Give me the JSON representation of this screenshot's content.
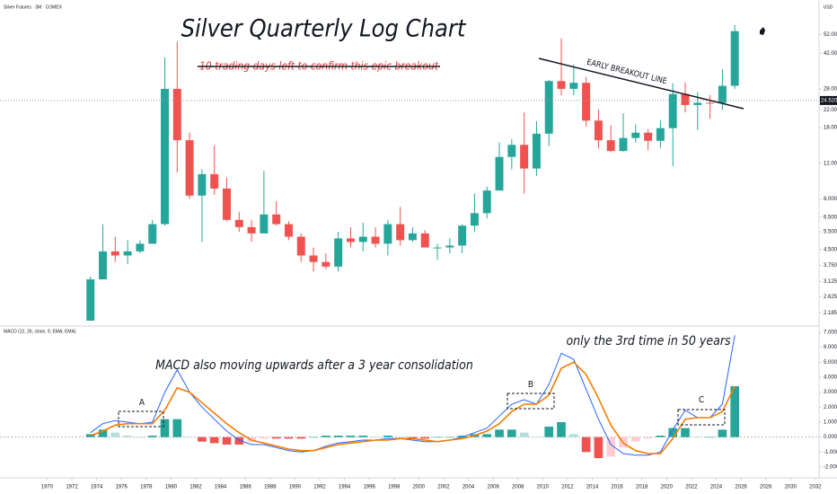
{
  "chart_data": [
    {
      "type": "candlestick",
      "title": "Silver Quarterly Log Chart",
      "subtitle": "Silver Futures · 3M · COMEX",
      "axis_label": "USD",
      "annotations": [
        "10 trading days left to confirm this epic breakout",
        "EARLY BREAKOUT LINE"
      ],
      "x": [
        1973.5,
        1974.5,
        1975.5,
        1976.5,
        1977.5,
        1978.5,
        1979.5,
        1980.5,
        1981.5,
        1982.5,
        1983.5,
        1984.5,
        1985.5,
        1986.5,
        1987.5,
        1988.5,
        1989.5,
        1990.5,
        1991.5,
        1992.5,
        1993.5,
        1994.5,
        1995.5,
        1996.5,
        1997.5,
        1998.5,
        1999.5,
        2000.5,
        2001.5,
        2002.5,
        2003.5,
        2004.5,
        2005.5,
        2006.5,
        2007.5,
        2008.5,
        2009.5,
        2010.5,
        2011.5,
        2012.5,
        2013.5,
        2014.5,
        2015.5,
        2016.5,
        2017.5,
        2018.5,
        2019.5,
        2020.5,
        2021.5,
        2022.5,
        2023.5,
        2024.5,
        2025.5
      ],
      "open": [
        2.0,
        3.2,
        4.4,
        4.2,
        4.4,
        4.8,
        6.0,
        28,
        15.6,
        8.3,
        10.6,
        9.0,
        6.3,
        5.8,
        5.4,
        6.7,
        6.0,
        5.2,
        4.2,
        3.9,
        3.7,
        5.1,
        4.9,
        5.2,
        4.8,
        6.0,
        5.0,
        5.4,
        4.6,
        4.6,
        4.7,
        5.9,
        6.8,
        8.8,
        12.9,
        14.8,
        11.3,
        16.8,
        30.6,
        28,
        30,
        19.5,
        15.6,
        13.8,
        16,
        17,
        15.5,
        17.9,
        26.4,
        23.3,
        23.9,
        23.8,
        29
      ],
      "high": [
        3.3,
        6.0,
        5.2,
        5.0,
        5.0,
        6.3,
        40,
        48,
        17,
        11.2,
        14.7,
        10.2,
        6.9,
        6.3,
        11.0,
        7.8,
        6.2,
        5.4,
        4.6,
        4.3,
        5.5,
        5.8,
        6.1,
        5.8,
        6.3,
        7.3,
        5.8,
        5.6,
        4.8,
        5.1,
        6.0,
        8.5,
        9.2,
        15.2,
        15.8,
        21.4,
        19.4,
        31,
        49.8,
        37,
        32,
        22.2,
        18.5,
        21.2,
        18.7,
        17.7,
        19.6,
        29.9,
        30.1,
        27,
        26.1,
        35,
        58
      ],
      "low": [
        2.0,
        3.2,
        3.9,
        3.8,
        4.3,
        4.8,
        5.9,
        10.8,
        8.0,
        4.9,
        8.4,
        6.2,
        5.5,
        4.9,
        5.4,
        5.9,
        5.0,
        3.9,
        3.5,
        3.6,
        3.5,
        4.6,
        4.4,
        4.6,
        4.2,
        4.7,
        4.9,
        4.6,
        4.0,
        4.3,
        4.3,
        5.5,
        6.4,
        8.8,
        11.2,
        8.5,
        10.4,
        14.6,
        26,
        26,
        18.2,
        14.2,
        13.6,
        13.7,
        15.2,
        13.9,
        14.3,
        11.6,
        21.4,
        17.5,
        19.9,
        22,
        28
      ],
      "close": [
        3.2,
        4.4,
        4.2,
        4.4,
        4.8,
        6.0,
        28,
        15.6,
        8.3,
        10.6,
        9.0,
        6.3,
        5.8,
        5.4,
        6.7,
        6.0,
        5.2,
        4.2,
        3.9,
        3.7,
        5.1,
        4.9,
        5.2,
        4.8,
        6.0,
        5.0,
        5.4,
        4.6,
        4.6,
        4.7,
        5.9,
        6.8,
        8.8,
        12.9,
        14.8,
        11.3,
        16.8,
        30.6,
        28,
        30,
        19.5,
        15.6,
        13.8,
        16,
        17,
        15.5,
        17.9,
        26.4,
        23.3,
        23.9,
        23.8,
        29,
        54
      ],
      "up_color": "#26a69a",
      "down_color": "#ef5350",
      "log_scale": true,
      "ylim": [
        1.9,
        77
      ],
      "yticks": [
        2.185,
        2.625,
        3.125,
        {
          "value": 3.75,
          "label": "3.750"
        },
        {
          "value": 4.5,
          "label": "4.500"
        },
        {
          "value": 5.5,
          "label": "5.500"
        },
        {
          "value": 6.5,
          "label": "6.500"
        },
        {
          "value": 8,
          "label": "8.000"
        },
        {
          "value": 12,
          "label": "12.000"
        },
        {
          "value": 18,
          "label": "18.000"
        },
        {
          "value": 22,
          "label": "22.000"
        },
        {
          "value": 28,
          "label": "28.000"
        },
        {
          "value": 42,
          "label": "42.000"
        },
        {
          "value": 52,
          "label": "52.000"
        }
      ],
      "price_marker": {
        "value": 24.52,
        "label": "24.520"
      }
    },
    {
      "type": "macd",
      "title": "MACD (12, 26, close, 9, EMA, EMA)",
      "annotations": [
        "MACD also moving upwards after a 3 year consolidation",
        "only the 3rd time in 50 years"
      ],
      "labels": [
        "A",
        "B",
        "C"
      ],
      "x": [
        1973.5,
        1974.5,
        1975.5,
        1976.5,
        1977.5,
        1978.5,
        1979.5,
        1980.5,
        1981.5,
        1982.5,
        1983.5,
        1984.5,
        1985.5,
        1986.5,
        1987.5,
        1988.5,
        1989.5,
        1990.5,
        1991.5,
        1992.5,
        1993.5,
        1994.5,
        1995.5,
        1996.5,
        1997.5,
        1998.5,
        1999.5,
        2000.5,
        2001.5,
        2002.5,
        2003.5,
        2004.5,
        2005.5,
        2006.5,
        2007.5,
        2008.5,
        2009.5,
        2010.5,
        2011.5,
        2012.5,
        2013.5,
        2014.5,
        2015.5,
        2016.5,
        2017.5,
        2018.5,
        2019.5,
        2020.5,
        2021.5,
        2022.5,
        2023.5,
        2024.5,
        2025.5
      ],
      "series": [
        {
          "color": "#2962ff",
          "values": [
            0.3,
            0.9,
            1.1,
            1.0,
            0.9,
            1.0,
            3.0,
            4.5,
            3.0,
            2.0,
            1.2,
            0.4,
            -0.2,
            -0.5,
            -0.5,
            -0.7,
            -0.9,
            -1.0,
            -0.9,
            -0.6,
            -0.4,
            -0.3,
            -0.2,
            -0.2,
            -0.1,
            -0.1,
            -0.2,
            -0.3,
            -0.3,
            -0.2,
            0,
            0.3,
            0.6,
            1.4,
            2.2,
            2.5,
            2.2,
            3.5,
            5.6,
            5.2,
            3.2,
            1.2,
            -0.5,
            -1.1,
            -1.2,
            -1.2,
            -1.0,
            0.5,
            1.8,
            1.3,
            1.3,
            2.2,
            6.8
          ]
        },
        {
          "color": "#f57c00",
          "values": [
            0.1,
            0.4,
            0.8,
            0.9,
            0.9,
            0.9,
            1.8,
            3.3,
            3.0,
            2.3,
            1.6,
            0.9,
            0.3,
            -0.2,
            -0.4,
            -0.6,
            -0.8,
            -0.9,
            -0.9,
            -0.7,
            -0.5,
            -0.4,
            -0.3,
            -0.2,
            -0.2,
            -0.1,
            -0.1,
            -0.2,
            -0.3,
            -0.2,
            -0.1,
            0.1,
            0.4,
            0.9,
            1.7,
            2.2,
            2.2,
            2.8,
            4.6,
            5.0,
            4.2,
            2.6,
            0.8,
            -0.4,
            -0.9,
            -1.1,
            -1.1,
            -0.1,
            1.2,
            1.3,
            1.3,
            1.7,
            3.4
          ]
        }
      ],
      "histogram": [
        0.2,
        0.5,
        0.3,
        0.1,
        0,
        0.1,
        1.2,
        1.2,
        0,
        -0.3,
        -0.4,
        -0.5,
        -0.5,
        -0.3,
        -0.1,
        -0.1,
        -0.1,
        -0.1,
        0,
        0.1,
        0.1,
        0.1,
        0.1,
        0,
        0.1,
        0,
        -0.1,
        -0.1,
        0,
        0,
        0.1,
        0.2,
        0.2,
        0.5,
        0.5,
        0.3,
        0,
        0.7,
        1.0,
        0.2,
        -1.0,
        -1.4,
        -1.3,
        -0.7,
        -0.3,
        -0.1,
        0.1,
        0.6,
        0.6,
        0,
        0,
        0.5,
        3.4
      ],
      "histogram_colors": [
        "#26a69a",
        "#b2dfdb",
        "#ef5350",
        "#ffcdd2"
      ],
      "ylim": [
        -2.6,
        7.3
      ],
      "yticks": [
        {
          "value": -2,
          "label": "-2.000"
        },
        {
          "value": -1,
          "label": "-1.000"
        },
        {
          "value": 0,
          "label": "0.000"
        },
        {
          "value": 1,
          "label": "1.000"
        },
        {
          "value": 2,
          "label": "2.000"
        },
        {
          "value": 3,
          "label": "3.000"
        },
        {
          "value": 4,
          "label": "4.000"
        },
        {
          "value": 5,
          "label": "5.000"
        },
        {
          "value": 6,
          "label": "6.000"
        },
        {
          "value": 7,
          "label": "7.000"
        }
      ],
      "xlim": [
        1966.2,
        2032.3
      ],
      "xticks": [
        1970,
        1972,
        1974,
        1976,
        1978,
        1980,
        1982,
        1984,
        1986,
        1988,
        1990,
        1992,
        1994,
        1996,
        1998,
        2000,
        2002,
        2004,
        2006,
        2008,
        2010,
        2012,
        2014,
        2016,
        2018,
        2020,
        2022,
        2024,
        2026,
        2028,
        2030,
        2032
      ]
    }
  ]
}
